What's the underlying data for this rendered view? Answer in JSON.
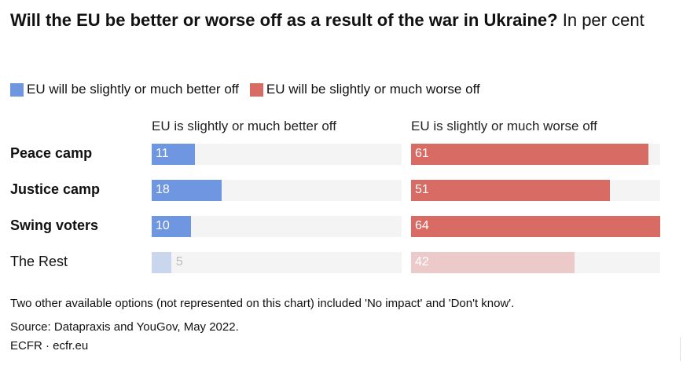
{
  "chart_data": {
    "type": "bar",
    "title": "Will the EU be better or worse off as a result of the war in Ukraine?",
    "subtitle": "In per cent",
    "legend": [
      {
        "name": "EU will be slightly or much better off",
        "color": "#6f96e0"
      },
      {
        "name": "EU will be slightly or much worse off",
        "color": "#d86c65"
      }
    ],
    "legend_placement": "top-left",
    "panels": [
      {
        "title": "EU is slightly or much better off"
      },
      {
        "title": "EU is slightly or much worse off"
      }
    ],
    "categories": [
      "Peace camp",
      "Justice camp",
      "Swing voters",
      "The Rest"
    ],
    "emphasized": [
      true,
      true,
      true,
      false
    ],
    "series": [
      {
        "name": "EU will be slightly or much better off",
        "color": "#6f96e0",
        "faded_color": "#cad6ee",
        "values": [
          11,
          18,
          10,
          5
        ]
      },
      {
        "name": "EU will be slightly or much worse off",
        "color": "#d86c65",
        "faded_color": "#eccaca",
        "values": [
          61,
          51,
          64,
          42
        ]
      }
    ],
    "xlim": [
      0,
      64
    ],
    "grid": false
  },
  "notes": {
    "footnote": "Two other available options (not represented on this chart) included 'No impact' and 'Don't know'.",
    "source": "Source: Datapraxis and YouGov, May 2022.",
    "credit": "ECFR · ecfr.eu"
  }
}
